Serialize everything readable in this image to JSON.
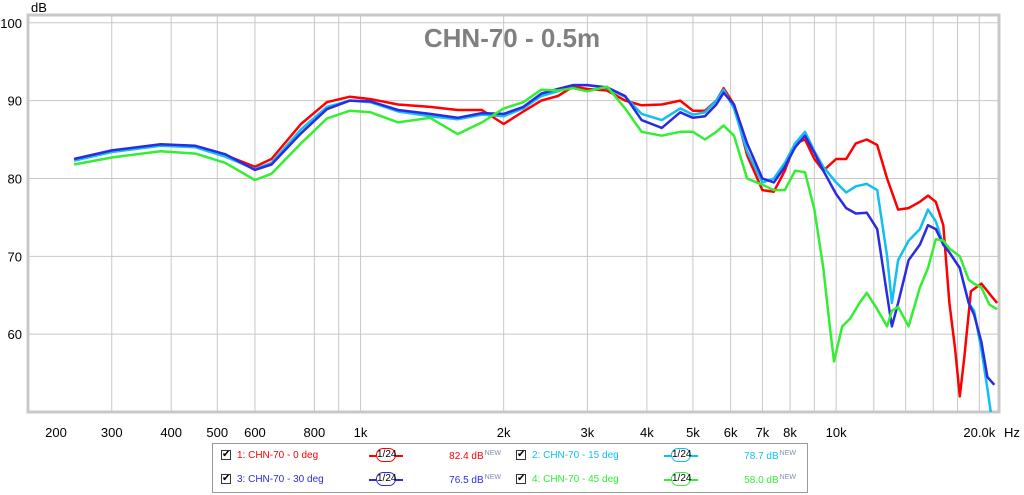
{
  "chart_data": {
    "type": "line",
    "title": "CHN-70 - 0.5m",
    "ylabel": "dB",
    "xlabel": "Hz",
    "xscale": "log",
    "xlim": [
      200,
      22000
    ],
    "ylim": [
      50,
      101
    ],
    "grid": true,
    "x_tick_values": [
      200,
      300,
      400,
      500,
      600,
      800,
      1000,
      2000,
      3000,
      4000,
      5000,
      6000,
      7000,
      8000,
      10000,
      20000
    ],
    "x_tick_labels": [
      "200",
      "300",
      "400",
      "500",
      "600",
      "800",
      "1k",
      "2k",
      "3k",
      "4k",
      "5k",
      "6k",
      "7k",
      "8k",
      "10k",
      "20.0k"
    ],
    "x_minor_values": [
      900,
      9000,
      12000,
      14000,
      16000,
      18000
    ],
    "y_tick_values": [
      60,
      70,
      80,
      90,
      100
    ],
    "y_tick_labels": [
      "60",
      "70",
      "80",
      "90",
      "100"
    ],
    "legend_position": "bottom",
    "series": [
      {
        "name": "1: CHN-70 - 0 deg",
        "color": "#ff0000",
        "smoothing": "1/24",
        "level": "82.4 dB",
        "points": [
          [
            250,
            82.5
          ],
          [
            300,
            83.5
          ],
          [
            380,
            84.3
          ],
          [
            450,
            84.1
          ],
          [
            520,
            83
          ],
          [
            600,
            81.5
          ],
          [
            650,
            82.5
          ],
          [
            750,
            87
          ],
          [
            850,
            89.8
          ],
          [
            950,
            90.5
          ],
          [
            1050,
            90.2
          ],
          [
            1200,
            89.5
          ],
          [
            1400,
            89.2
          ],
          [
            1600,
            88.8
          ],
          [
            1800,
            88.8
          ],
          [
            2000,
            87
          ],
          [
            2200,
            88.6
          ],
          [
            2400,
            90
          ],
          [
            2600,
            90.6
          ],
          [
            2800,
            91.8
          ],
          [
            3000,
            91.5
          ],
          [
            3300,
            91.3
          ],
          [
            3600,
            90
          ],
          [
            3900,
            89.4
          ],
          [
            4300,
            89.5
          ],
          [
            4700,
            90
          ],
          [
            5000,
            88.7
          ],
          [
            5300,
            88.7
          ],
          [
            5600,
            90
          ],
          [
            5800,
            91.6
          ],
          [
            6100,
            89.5
          ],
          [
            6500,
            83
          ],
          [
            7000,
            78.5
          ],
          [
            7400,
            78.3
          ],
          [
            7800,
            81
          ],
          [
            8200,
            84.5
          ],
          [
            8600,
            85
          ],
          [
            9000,
            82.5
          ],
          [
            9400,
            81
          ],
          [
            10000,
            82.5
          ],
          [
            10500,
            82.5
          ],
          [
            11000,
            84.5
          ],
          [
            11600,
            85
          ],
          [
            12200,
            84.3
          ],
          [
            12800,
            80
          ],
          [
            13500,
            76
          ],
          [
            14200,
            76.2
          ],
          [
            15000,
            77
          ],
          [
            15600,
            77.8
          ],
          [
            16200,
            77
          ],
          [
            16800,
            74
          ],
          [
            17300,
            64
          ],
          [
            17800,
            58
          ],
          [
            18200,
            52
          ],
          [
            18600,
            57
          ],
          [
            19200,
            65.5
          ],
          [
            20200,
            66.5
          ],
          [
            21000,
            65.2
          ],
          [
            21800,
            64
          ]
        ]
      },
      {
        "name": "2: CHN-70 - 15 deg",
        "color": "#11bff0",
        "smoothing": "1/24",
        "level": "78.7 dB",
        "points": [
          [
            250,
            82.3
          ],
          [
            300,
            83.4
          ],
          [
            380,
            84.2
          ],
          [
            450,
            84
          ],
          [
            520,
            82.8
          ],
          [
            600,
            81.2
          ],
          [
            650,
            82
          ],
          [
            750,
            86.3
          ],
          [
            850,
            89.2
          ],
          [
            950,
            90
          ],
          [
            1050,
            89.8
          ],
          [
            1200,
            88.6
          ],
          [
            1400,
            88
          ],
          [
            1600,
            87.6
          ],
          [
            1800,
            88.2
          ],
          [
            2000,
            88
          ],
          [
            2200,
            89
          ],
          [
            2400,
            90.6
          ],
          [
            2600,
            91.2
          ],
          [
            2800,
            92
          ],
          [
            3000,
            92
          ],
          [
            3300,
            91.6
          ],
          [
            3600,
            90.5
          ],
          [
            3900,
            88.3
          ],
          [
            4300,
            87.5
          ],
          [
            4700,
            89
          ],
          [
            5000,
            88.2
          ],
          [
            5300,
            88.5
          ],
          [
            5600,
            90
          ],
          [
            5800,
            91.4
          ],
          [
            6100,
            89
          ],
          [
            6500,
            83.5
          ],
          [
            7000,
            79.5
          ],
          [
            7400,
            80
          ],
          [
            7800,
            82
          ],
          [
            8200,
            84.5
          ],
          [
            8600,
            86
          ],
          [
            9000,
            83.5
          ],
          [
            9400,
            81.5
          ],
          [
            10000,
            79.5
          ],
          [
            10500,
            78.2
          ],
          [
            11000,
            79
          ],
          [
            11600,
            79.3
          ],
          [
            12200,
            78.5
          ],
          [
            12800,
            70
          ],
          [
            13100,
            64
          ],
          [
            13500,
            69.5
          ],
          [
            14200,
            72
          ],
          [
            15000,
            73.5
          ],
          [
            15600,
            76
          ],
          [
            16200,
            74.5
          ],
          [
            16800,
            71.5
          ],
          [
            17300,
            70.5
          ],
          [
            18200,
            68.5
          ],
          [
            19000,
            64
          ],
          [
            19500,
            63
          ],
          [
            20200,
            58
          ],
          [
            20800,
            53
          ],
          [
            21200,
            49.5
          ]
        ]
      },
      {
        "name": "3: CHN-70 - 30 deg",
        "color": "#2b2be0",
        "smoothing": "1/24",
        "level": "76.5 dB",
        "points": [
          [
            250,
            82.5
          ],
          [
            300,
            83.6
          ],
          [
            380,
            84.4
          ],
          [
            450,
            84.2
          ],
          [
            520,
            83.1
          ],
          [
            600,
            81.1
          ],
          [
            650,
            81.8
          ],
          [
            750,
            85.8
          ],
          [
            850,
            88.9
          ],
          [
            950,
            90
          ],
          [
            1050,
            89.9
          ],
          [
            1200,
            88.8
          ],
          [
            1400,
            88.3
          ],
          [
            1600,
            87.8
          ],
          [
            1800,
            88.4
          ],
          [
            2000,
            88.3
          ],
          [
            2200,
            89.2
          ],
          [
            2400,
            90.9
          ],
          [
            2600,
            91.5
          ],
          [
            2800,
            92
          ],
          [
            3000,
            92
          ],
          [
            3300,
            91.7
          ],
          [
            3600,
            90.6
          ],
          [
            3900,
            87.5
          ],
          [
            4300,
            86.5
          ],
          [
            4700,
            88.5
          ],
          [
            5000,
            87.8
          ],
          [
            5300,
            88
          ],
          [
            5600,
            89.5
          ],
          [
            5800,
            91
          ],
          [
            6100,
            89.5
          ],
          [
            6500,
            84.5
          ],
          [
            7000,
            80
          ],
          [
            7400,
            79.5
          ],
          [
            7800,
            81.5
          ],
          [
            8200,
            84
          ],
          [
            8600,
            85.5
          ],
          [
            9000,
            83.3
          ],
          [
            9400,
            81
          ],
          [
            10000,
            78
          ],
          [
            10500,
            76.2
          ],
          [
            11000,
            75.5
          ],
          [
            11600,
            75.6
          ],
          [
            12200,
            73.5
          ],
          [
            12800,
            65
          ],
          [
            13100,
            61
          ],
          [
            13500,
            64
          ],
          [
            14200,
            69.5
          ],
          [
            15000,
            71.5
          ],
          [
            15600,
            74
          ],
          [
            16200,
            73.5
          ],
          [
            16800,
            71.5
          ],
          [
            17300,
            70.5
          ],
          [
            18200,
            68.5
          ],
          [
            19000,
            64
          ],
          [
            19500,
            62.5
          ],
          [
            20200,
            59
          ],
          [
            20800,
            54.5
          ],
          [
            21500,
            53.5
          ]
        ]
      },
      {
        "name": "4: CHN-70 - 45 deg",
        "color": "#33ee33",
        "smoothing": "1/24",
        "level": "58.0 dB",
        "points": [
          [
            250,
            81.8
          ],
          [
            300,
            82.7
          ],
          [
            380,
            83.5
          ],
          [
            450,
            83.2
          ],
          [
            520,
            82
          ],
          [
            600,
            79.8
          ],
          [
            650,
            80.6
          ],
          [
            750,
            84.5
          ],
          [
            850,
            87.7
          ],
          [
            950,
            88.7
          ],
          [
            1050,
            88.5
          ],
          [
            1200,
            87.2
          ],
          [
            1400,
            87.8
          ],
          [
            1600,
            85.7
          ],
          [
            1800,
            87.2
          ],
          [
            2000,
            89
          ],
          [
            2200,
            89.8
          ],
          [
            2400,
            91.4
          ],
          [
            2600,
            91.3
          ],
          [
            2800,
            91.6
          ],
          [
            3000,
            91.2
          ],
          [
            3300,
            91.8
          ],
          [
            3600,
            89
          ],
          [
            3900,
            86
          ],
          [
            4300,
            85.5
          ],
          [
            4700,
            86
          ],
          [
            5000,
            86
          ],
          [
            5300,
            85
          ],
          [
            5600,
            86
          ],
          [
            5800,
            86.8
          ],
          [
            6100,
            85.5
          ],
          [
            6500,
            80
          ],
          [
            7000,
            79.2
          ],
          [
            7400,
            78.5
          ],
          [
            7800,
            78.5
          ],
          [
            8200,
            81
          ],
          [
            8600,
            80.8
          ],
          [
            9000,
            76
          ],
          [
            9400,
            68.5
          ],
          [
            9700,
            61
          ],
          [
            9900,
            56.5
          ],
          [
            10300,
            61
          ],
          [
            10700,
            62
          ],
          [
            11200,
            64
          ],
          [
            11600,
            65.3
          ],
          [
            12200,
            63.2
          ],
          [
            12800,
            61
          ],
          [
            13100,
            63
          ],
          [
            13500,
            63.5
          ],
          [
            14200,
            61
          ],
          [
            15000,
            66
          ],
          [
            15600,
            68.5
          ],
          [
            16200,
            72.2
          ],
          [
            16800,
            72
          ],
          [
            17300,
            71
          ],
          [
            18200,
            70
          ],
          [
            19000,
            67
          ],
          [
            19500,
            66.5
          ],
          [
            20200,
            66
          ],
          [
            21000,
            63.8
          ],
          [
            21800,
            63.2
          ]
        ]
      }
    ]
  }
}
